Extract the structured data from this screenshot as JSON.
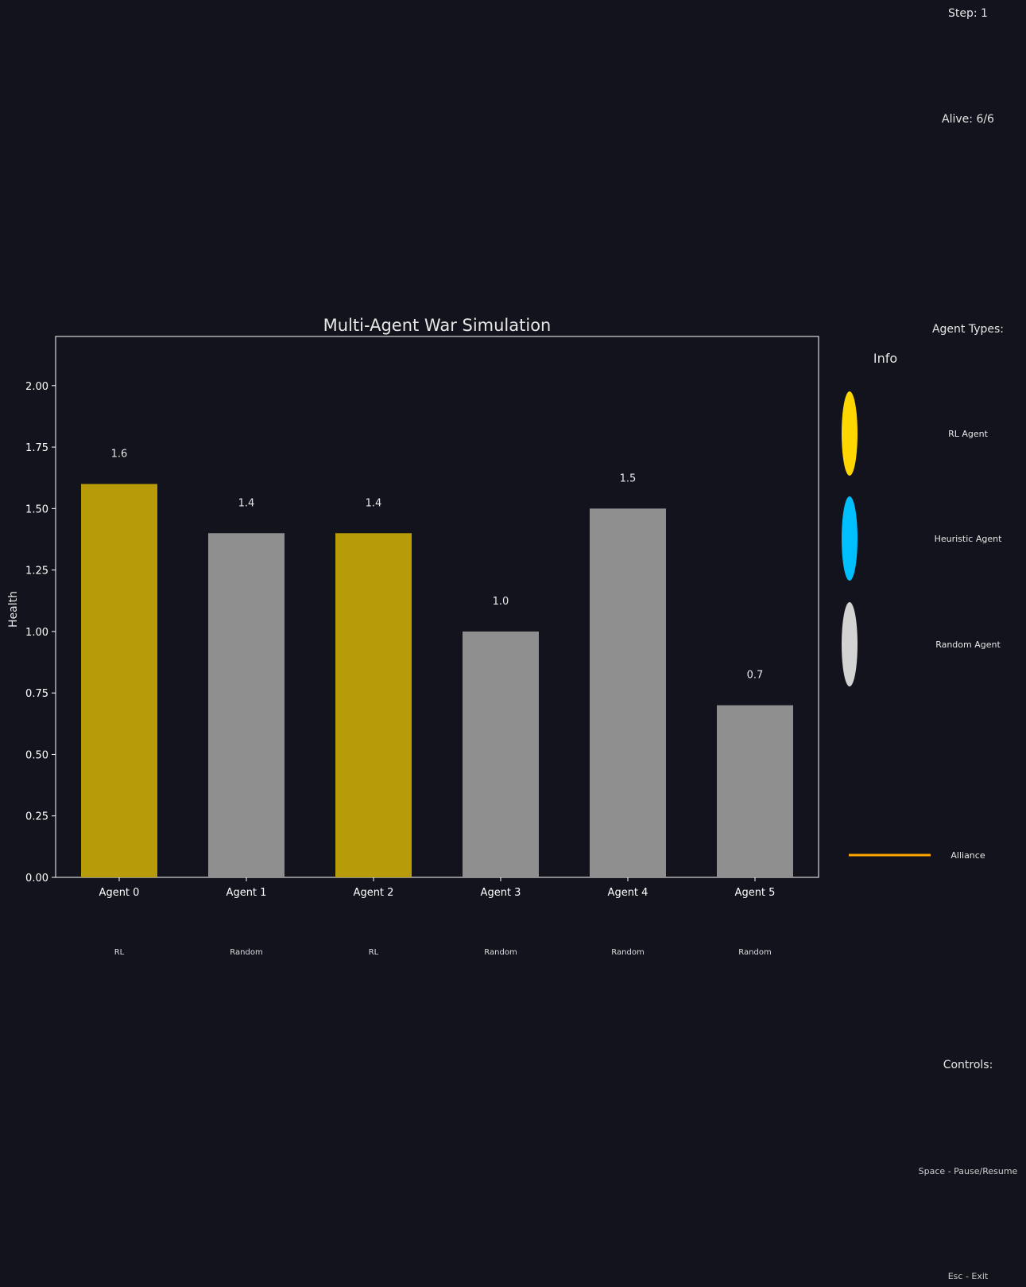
{
  "status": {
    "step": "Step: 1",
    "alive": "Alive: 6/6",
    "agent_types_heading": "Agent Types:",
    "controls_heading": "Controls:",
    "controls": [
      "Space - Pause/Resume",
      "Esc - Exit"
    ]
  },
  "legend": {
    "title": "Info",
    "entries": [
      {
        "label": "RL Agent",
        "color": "#ffd700"
      },
      {
        "label": "Heuristic Agent",
        "color": "#00bfff"
      },
      {
        "label": "Random Agent",
        "color": "#d3d3d3"
      }
    ],
    "alliance": {
      "label": "Alliance",
      "color": "#ffa500"
    }
  },
  "chart_data": {
    "type": "bar",
    "title": "Multi-Agent War Simulation",
    "xlabel": "",
    "ylabel": "Health",
    "ylim": [
      0,
      2.2
    ],
    "yticks": [
      0,
      0.25,
      0.5,
      0.75,
      1.0,
      1.25,
      1.5,
      1.75,
      2.0
    ],
    "ytick_labels": [
      "0.00",
      "0.25",
      "0.50",
      "0.75",
      "1.00",
      "1.25",
      "1.50",
      "1.75",
      "2.00"
    ],
    "grid": false,
    "legend_position": "right, outside plot",
    "categories": [
      "Agent 0",
      "Agent 1",
      "Agent 2",
      "Agent 3",
      "Agent 4",
      "Agent 5"
    ],
    "values": [
      1.6,
      1.4,
      1.4,
      1.0,
      1.5,
      0.7
    ],
    "value_labels": [
      "1.6",
      "1.4",
      "1.4",
      "1.0",
      "1.5",
      "0.7"
    ],
    "agent_types": [
      "RL",
      "Random",
      "RL",
      "Random",
      "Random",
      "Random"
    ],
    "bar_colors": [
      "#b89b08",
      "#8f8f8f",
      "#b89b08",
      "#8f8f8f",
      "#8f8f8f",
      "#8f8f8f"
    ]
  }
}
